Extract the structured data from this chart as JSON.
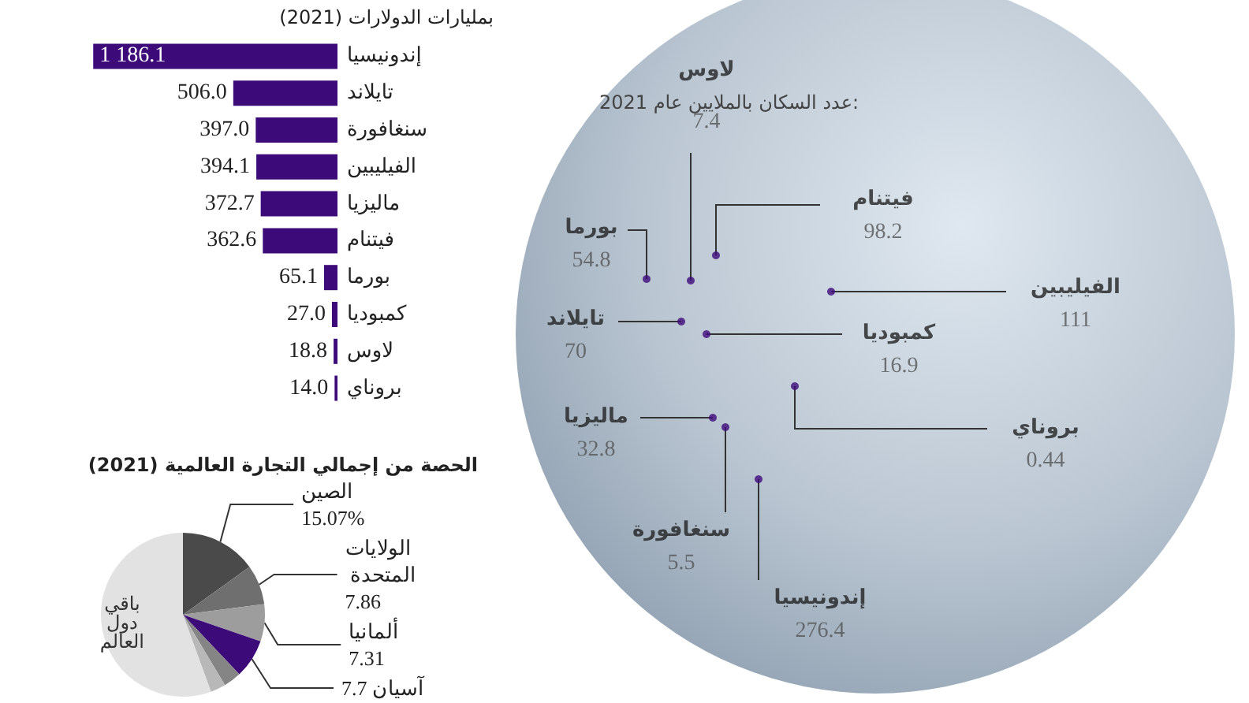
{
  "chart_data": [
    {
      "type": "bar",
      "orientation": "horizontal",
      "subtitle": "بمليارات الدولارات (2021)",
      "categories": [
        "إندونيسيا",
        "تايلاند",
        "سنغافورة",
        "الفيليبين",
        "ماليزيا",
        "فيتنام",
        "بورما",
        "كمبوديا",
        "لاوس",
        "بروناي"
      ],
      "values": [
        1186.1,
        506.0,
        397.0,
        394.1,
        372.7,
        362.6,
        65.1,
        27.0,
        18.8,
        14.0
      ],
      "value_labels": [
        "1 186.1",
        "506.0",
        "397.0",
        "394.1",
        "372.7",
        "362.6",
        "65.1",
        "27.0",
        "18.8",
        "14.0"
      ],
      "color": "#3d0a7a"
    },
    {
      "type": "pie",
      "title": "الحصة من إجمالي التجارة العالمية (2021)",
      "categories": [
        "الصين",
        "الولايات المتحدة",
        "ألمانيا",
        "آسيان",
        null,
        null,
        "باقي دول العالم"
      ],
      "values": [
        15.07,
        7.86,
        7.31,
        7.7,
        3.5,
        3.0,
        55.56
      ],
      "value_labels": [
        "15.07%",
        "7.86",
        "7.31",
        "7.7",
        null,
        null,
        null
      ],
      "colors": [
        "#4a4a4a",
        "#6f6f6f",
        "#9d9d9d",
        "#3d0a7a",
        "#858585",
        "#b8b8b8",
        "#e2e2e2"
      ]
    },
    {
      "type": "other",
      "title": "عدد السكان بالملايين عام 2021:",
      "categories": [
        "لاوس",
        "فيتنام",
        "بورما",
        "الفيليبين",
        "تايلاند",
        "كمبوديا",
        "بروناي",
        "ماليزيا",
        "سنغافورة",
        "إندونيسيا"
      ],
      "values": [
        7.4,
        98.2,
        54.8,
        111,
        70,
        16.9,
        0.44,
        32.8,
        5.5,
        276.4
      ],
      "data_labels": true,
      "color": "#3d0a7a"
    }
  ]
}
